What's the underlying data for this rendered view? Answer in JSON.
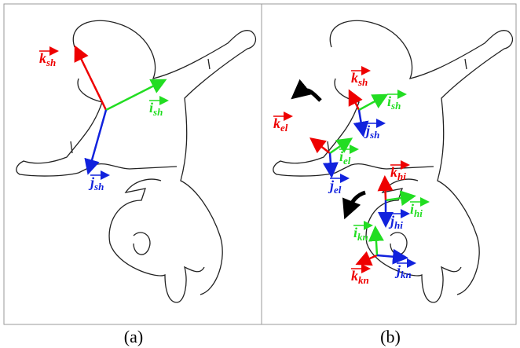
{
  "panels": [
    {
      "caption": "(a)",
      "vectors": [
        {
          "letter": "k",
          "sub": "sh"
        },
        {
          "letter": "i",
          "sub": "sh"
        },
        {
          "letter": "j",
          "sub": "sh"
        }
      ]
    },
    {
      "caption": "(b)",
      "vectors": [
        {
          "letter": "k",
          "sub": "sh"
        },
        {
          "letter": "i",
          "sub": "sh"
        },
        {
          "letter": "j",
          "sub": "sh"
        },
        {
          "letter": "k",
          "sub": "el"
        },
        {
          "letter": "i",
          "sub": "el"
        },
        {
          "letter": "j",
          "sub": "el"
        },
        {
          "letter": "k",
          "sub": "hi"
        },
        {
          "letter": "i",
          "sub": "hi"
        },
        {
          "letter": "j",
          "sub": "hi"
        },
        {
          "letter": "k",
          "sub": "kn"
        },
        {
          "letter": "i",
          "sub": "kn"
        },
        {
          "letter": "j",
          "sub": "kn"
        }
      ]
    }
  ]
}
